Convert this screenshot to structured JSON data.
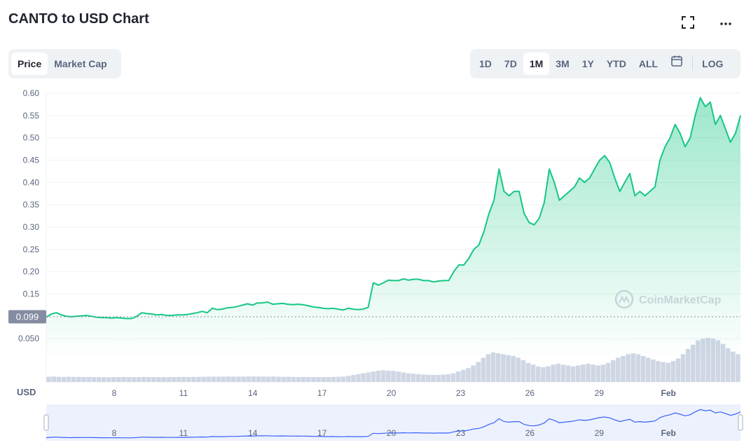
{
  "header": {
    "title": "CANTO to USD Chart",
    "fullscreen_icon": "fullscreen-icon",
    "more_icon": "more-horizontal-icon"
  },
  "view_tabs": [
    {
      "label": "Price",
      "active": true
    },
    {
      "label": "Market Cap",
      "active": false
    }
  ],
  "range_tabs": [
    {
      "label": "1D",
      "active": false
    },
    {
      "label": "7D",
      "active": false
    },
    {
      "label": "1M",
      "active": true
    },
    {
      "label": "3M",
      "active": false
    },
    {
      "label": "1Y",
      "active": false
    },
    {
      "label": "YTD",
      "active": false
    },
    {
      "label": "ALL",
      "active": false
    }
  ],
  "calendar_icon": "calendar-icon",
  "log_label": "LOG",
  "watermark": "CoinMarketCap",
  "watermark_logo": "coinmarketcap-logo",
  "colors": {
    "line": "#16c784",
    "fill": "#16c784",
    "volume": "#cfd6e4",
    "current_badge": "#858ca2",
    "navigator_fill": "#e1e7fb",
    "navigator_line": "#3861fb"
  },
  "chart_data": {
    "type": "area",
    "currency_label": "USD",
    "current_price_label": "0.099",
    "y_ticks": [
      "0.60",
      "0.55",
      "0.50",
      "0.45",
      "0.40",
      "0.35",
      "0.30",
      "0.25",
      "0.20",
      "0.15",
      "0.050"
    ],
    "ylim": [
      0.0,
      0.6
    ],
    "x_tick_labels": [
      "8",
      "11",
      "14",
      "17",
      "20",
      "23",
      "26",
      "29",
      "Feb"
    ],
    "series": [
      {
        "values": [
          0.098,
          0.105,
          0.108,
          0.103,
          0.1,
          0.099,
          0.1,
          0.101,
          0.102,
          0.1,
          0.098,
          0.097,
          0.097,
          0.096,
          0.097,
          0.096,
          0.095,
          0.095,
          0.1,
          0.108,
          0.106,
          0.105,
          0.103,
          0.104,
          0.102,
          0.102,
          0.103,
          0.103,
          0.104,
          0.106,
          0.108,
          0.111,
          0.108,
          0.118,
          0.115,
          0.116,
          0.119,
          0.12,
          0.122,
          0.125,
          0.128,
          0.125,
          0.13,
          0.13,
          0.132,
          0.127,
          0.128,
          0.129,
          0.127,
          0.126,
          0.127,
          0.126,
          0.124,
          0.121,
          0.12,
          0.118,
          0.117,
          0.118,
          0.116,
          0.114,
          0.118,
          0.116,
          0.115,
          0.116,
          0.12,
          0.175,
          0.17,
          0.175,
          0.181,
          0.18,
          0.18,
          0.184,
          0.181,
          0.183,
          0.183,
          0.18,
          0.18,
          0.177,
          0.179,
          0.18,
          0.18,
          0.2,
          0.215,
          0.215,
          0.23,
          0.25,
          0.26,
          0.29,
          0.33,
          0.36,
          0.43,
          0.38,
          0.37,
          0.38,
          0.38,
          0.33,
          0.31,
          0.305,
          0.32,
          0.355,
          0.43,
          0.4,
          0.36,
          0.37,
          0.38,
          0.39,
          0.41,
          0.4,
          0.41,
          0.43,
          0.45,
          0.46,
          0.445,
          0.41,
          0.38,
          0.4,
          0.42,
          0.37,
          0.38,
          0.37,
          0.38,
          0.39,
          0.45,
          0.48,
          0.5,
          0.53,
          0.51,
          0.48,
          0.5,
          0.55,
          0.59,
          0.57,
          0.58,
          0.53,
          0.55,
          0.52,
          0.49,
          0.51,
          0.55
        ]
      }
    ],
    "volume": [
      0.6,
      0.62,
      0.6,
      0.58,
      0.6,
      0.59,
      0.58,
      0.57,
      0.58,
      0.56,
      0.55,
      0.55,
      0.54,
      0.55,
      0.56,
      0.57,
      0.56,
      0.55,
      0.56,
      0.58,
      0.57,
      0.56,
      0.55,
      0.56,
      0.55,
      0.56,
      0.57,
      0.58,
      0.57,
      0.58,
      0.59,
      0.6,
      0.61,
      0.62,
      0.61,
      0.62,
      0.63,
      0.62,
      0.61,
      0.62,
      0.63,
      0.64,
      0.63,
      0.62,
      0.61,
      0.62,
      0.6,
      0.59,
      0.6,
      0.58,
      0.57,
      0.58,
      0.57,
      0.56,
      0.55,
      0.56,
      0.57,
      0.58,
      0.6,
      0.62,
      0.7,
      0.8,
      0.9,
      1.0,
      1.1,
      1.2,
      1.3,
      1.35,
      1.3,
      1.28,
      1.2,
      1.1,
      1.0,
      0.95,
      0.9,
      0.85,
      0.82,
      0.8,
      0.82,
      0.85,
      0.9,
      1.0,
      1.2,
      1.4,
      1.6,
      1.9,
      2.3,
      2.8,
      3.2,
      3.4,
      3.3,
      3.2,
      3.1,
      3.0,
      2.8,
      2.5,
      2.2,
      2.0,
      1.8,
      1.7,
      1.8,
      2.0,
      2.1,
      2.0,
      1.9,
      1.8,
      1.9,
      2.0,
      2.1,
      2.0,
      1.9,
      2.0,
      2.2,
      2.5,
      2.8,
      3.0,
      3.2,
      3.3,
      3.2,
      3.0,
      2.8,
      2.6,
      2.4,
      2.3,
      2.2,
      2.4,
      2.7,
      3.2,
      3.8,
      4.3,
      4.8,
      5.0,
      5.1,
      5.0,
      4.8,
      4.4,
      3.9,
      3.5,
      3.2
    ]
  }
}
